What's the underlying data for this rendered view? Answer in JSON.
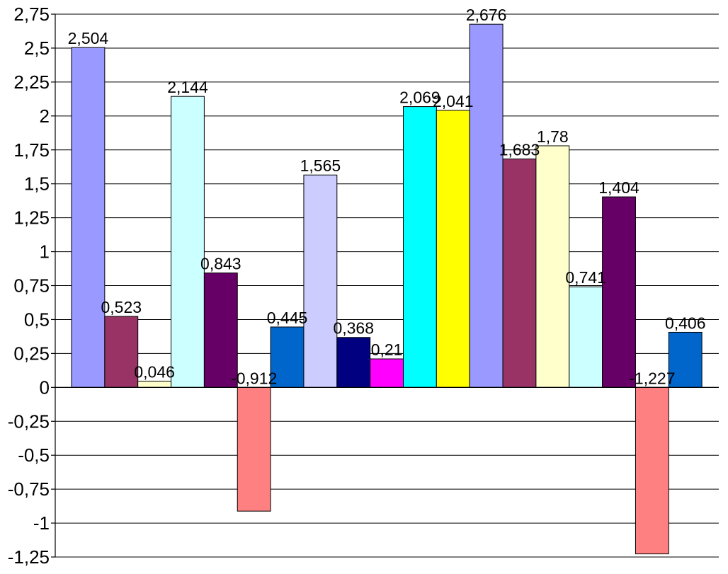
{
  "chart_data": {
    "type": "bar",
    "title": "",
    "xlabel": "",
    "ylabel": "",
    "ylim": [
      -1.25,
      2.75
    ],
    "y_ticks": [
      2.75,
      2.5,
      2.25,
      2,
      1.75,
      1.5,
      1.25,
      1,
      0.75,
      0.5,
      0.25,
      0,
      -0.25,
      -0.5,
      -0.75,
      -1,
      -1.25
    ],
    "y_tick_labels": [
      "2,75",
      "2,5",
      "2,25",
      "2",
      "1,75",
      "1,5",
      "1,25",
      "1",
      "0,75",
      "0,5",
      "0,25",
      "0",
      "-0,25",
      "-0,5",
      "-0,75",
      "-1",
      "-1,25"
    ],
    "grid": true,
    "legend": "none",
    "bars": [
      {
        "value": 2.504,
        "label": "2,504",
        "color": "#9999ff"
      },
      {
        "value": 0.523,
        "label": "0,523",
        "color": "#993366"
      },
      {
        "value": 0.046,
        "label": "0,046",
        "color": "#ffffcc"
      },
      {
        "value": 2.144,
        "label": "2,144",
        "color": "#ccffff"
      },
      {
        "value": 0.843,
        "label": "0,843",
        "color": "#660066"
      },
      {
        "value": -0.912,
        "label": "-0,912",
        "color": "#ff8080"
      },
      {
        "value": 0.445,
        "label": "0,445",
        "color": "#0066cc"
      },
      {
        "value": 1.565,
        "label": "1,565",
        "color": "#ccccff"
      },
      {
        "value": 0.368,
        "label": "0,368",
        "color": "#000080"
      },
      {
        "value": 0.21,
        "label": "0,21",
        "color": "#ff00ff"
      },
      {
        "value": 2.069,
        "label": "2,069",
        "color": "#00ffff"
      },
      {
        "value": 2.041,
        "label": "2,041",
        "color": "#ffff00"
      },
      {
        "value": 2.676,
        "label": "2,676",
        "color": "#9999ff"
      },
      {
        "value": 1.683,
        "label": "1,683",
        "color": "#993366"
      },
      {
        "value": 1.78,
        "label": "1,78",
        "color": "#ffffcc"
      },
      {
        "value": 0.741,
        "label": "0,741",
        "color": "#ccffff"
      },
      {
        "value": 1.404,
        "label": "1,404",
        "color": "#660066"
      },
      {
        "value": -1.227,
        "label": "-1,227",
        "color": "#ff8080"
      },
      {
        "value": 0.406,
        "label": "0,406",
        "color": "#0066cc"
      }
    ]
  }
}
